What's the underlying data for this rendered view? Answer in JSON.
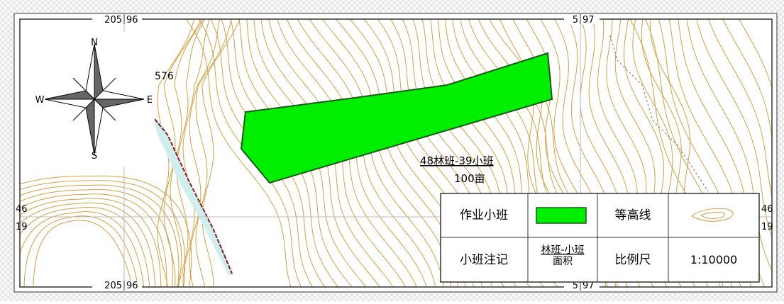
{
  "grid_labels": {
    "top_left": {
      "left": "205",
      "right": "96"
    },
    "top_right": {
      "left": "5",
      "right": "97"
    },
    "bottom_left": {
      "left": "205",
      "right": "96"
    },
    "bottom_right": {
      "left": "5",
      "right": "97"
    },
    "left_upper": "46",
    "left_lower": "19",
    "right_upper": "46",
    "right_lower": "19"
  },
  "compass": {
    "north": "N",
    "south": "S",
    "east": "E",
    "west": "W"
  },
  "elevation_label": "576",
  "stand_label": {
    "name": "48林班-39小班",
    "area": "100亩"
  },
  "legend": {
    "work_stand": "作业小班",
    "contour": "等高线",
    "stand_note": {
      "label": "小班注记",
      "sample_top": "林班-小班",
      "sample_bottom": "面积"
    },
    "scale": {
      "label": "比例尺",
      "value": "1:10000"
    }
  }
}
